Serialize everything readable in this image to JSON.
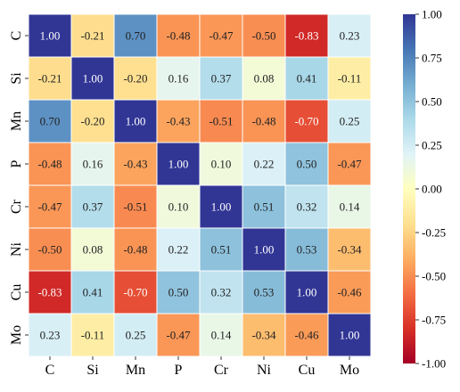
{
  "chart_data": {
    "type": "heatmap",
    "title": "",
    "xlabel": "",
    "ylabel": "",
    "categories": [
      "C",
      "Si",
      "Mn",
      "P",
      "Cr",
      "Ni",
      "Cu",
      "Mo"
    ],
    "values": [
      [
        1.0,
        -0.21,
        0.7,
        -0.48,
        -0.47,
        -0.5,
        -0.83,
        0.23
      ],
      [
        -0.21,
        1.0,
        -0.2,
        0.16,
        0.37,
        0.08,
        0.41,
        -0.11
      ],
      [
        0.7,
        -0.2,
        1.0,
        -0.43,
        -0.51,
        -0.48,
        -0.7,
        0.25
      ],
      [
        -0.48,
        0.16,
        -0.43,
        1.0,
        0.1,
        0.22,
        0.5,
        -0.47
      ],
      [
        -0.47,
        0.37,
        -0.51,
        0.1,
        1.0,
        0.51,
        0.32,
        0.14
      ],
      [
        -0.5,
        0.08,
        -0.48,
        0.22,
        0.51,
        1.0,
        0.53,
        -0.34
      ],
      [
        -0.83,
        0.41,
        -0.7,
        0.5,
        0.32,
        0.53,
        1.0,
        -0.46
      ],
      [
        0.23,
        -0.11,
        0.25,
        -0.47,
        0.14,
        -0.34,
        -0.46,
        1.0
      ]
    ],
    "value_labels": [
      [
        "1.00",
        "-0.21",
        "0.70",
        "-0.48",
        "-0.47",
        "-0.50",
        "-0.83",
        "0.23"
      ],
      [
        "-0.21",
        "1.00",
        "-0.20",
        "0.16",
        "0.37",
        "0.08",
        "0.41",
        "-0.11"
      ],
      [
        "0.70",
        "-0.20",
        "1.00",
        "-0.43",
        "-0.51",
        "-0.48",
        "-0.70",
        "0.25"
      ],
      [
        "-0.48",
        "0.16",
        "-0.43",
        "1.00",
        "0.10",
        "0.22",
        "0.50",
        "-0.47"
      ],
      [
        "-0.47",
        "0.37",
        "-0.51",
        "0.10",
        "1.00",
        "0.51",
        "0.32",
        "0.14"
      ],
      [
        "-0.50",
        "0.08",
        "-0.48",
        "0.22",
        "0.51",
        "1.00",
        "0.53",
        "-0.34"
      ],
      [
        "-0.83",
        "0.41",
        "-0.70",
        "0.50",
        "0.32",
        "0.53",
        "1.00",
        "-0.46"
      ],
      [
        "0.23",
        "-0.11",
        "0.25",
        "-0.47",
        "0.14",
        "-0.34",
        "-0.46",
        "1.00"
      ]
    ],
    "colorbar": {
      "range": [
        -1.0,
        1.0
      ],
      "ticks": [
        1.0,
        0.75,
        0.5,
        0.25,
        0.0,
        -0.25,
        -0.5,
        -0.75,
        -1.0
      ],
      "tick_labels": [
        "1.00",
        "0.75",
        "0.50",
        "0.25",
        "0.00",
        "-0.25",
        "-0.50",
        "-0.75",
        "-1.00"
      ],
      "colormap": [
        "#a50026",
        "#d73027",
        "#f46d43",
        "#fdae61",
        "#fee090",
        "#ffffbf",
        "#e0f3f8",
        "#abd9e9",
        "#74add1",
        "#4575b4",
        "#313695"
      ],
      "placement": "right"
    },
    "grid": false
  }
}
